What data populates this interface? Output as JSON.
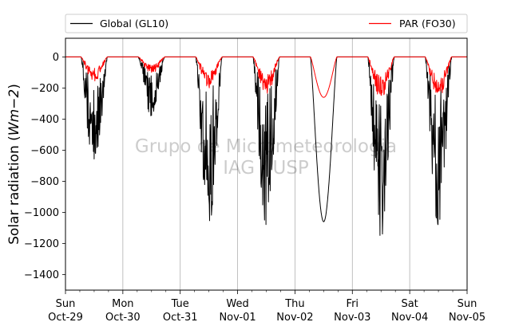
{
  "chart_data": {
    "type": "line",
    "ylabel_main": "Solar radiation (",
    "ylabel_unit": "Wm−2",
    "ylabel_close": ")",
    "ylim": [
      -1500,
      120
    ],
    "yticks": [
      0,
      -200,
      -400,
      -600,
      -800,
      -1000,
      -1200,
      -1400
    ],
    "ytick_labels": [
      "0",
      "−200",
      "−400",
      "−600",
      "−800",
      "−1000",
      "−1200",
      "−1400"
    ],
    "x_days": [
      {
        "dow": "Sun",
        "date": "Oct-29"
      },
      {
        "dow": "Mon",
        "date": "Oct-30"
      },
      {
        "dow": "Tue",
        "date": "Oct-31"
      },
      {
        "dow": "Wed",
        "date": "Nov-01"
      },
      {
        "dow": "Thu",
        "date": "Nov-02"
      },
      {
        "dow": "Fri",
        "date": "Nov-03"
      },
      {
        "dow": "Sat",
        "date": "Nov-04"
      },
      {
        "dow": "Sun",
        "date": "Nov-05"
      }
    ],
    "grid": "x-major",
    "legend_position": "top",
    "watermark": [
      "Grupo de Micrometeorologia",
      "IAG / USP"
    ],
    "series": [
      {
        "name": "Global (GL10)",
        "color": "#000000",
        "daily_peak": [
          -730,
          -380,
          -1100,
          -1080,
          -1060,
          -1160,
          -1080
        ],
        "daily_shape": [
          "cloudy",
          "cloudy",
          "cloudy",
          "cloudy",
          "clear",
          "cloudy",
          "cloudy"
        ]
      },
      {
        "name": "PAR (FO30)",
        "color": "#ff0000",
        "daily_peak": [
          -160,
          -110,
          -200,
          -240,
          -260,
          -270,
          -270
        ],
        "daily_shape": [
          "cloudy",
          "cloudy",
          "cloudy",
          "cloudy",
          "clear",
          "cloudy",
          "cloudy"
        ]
      }
    ]
  }
}
